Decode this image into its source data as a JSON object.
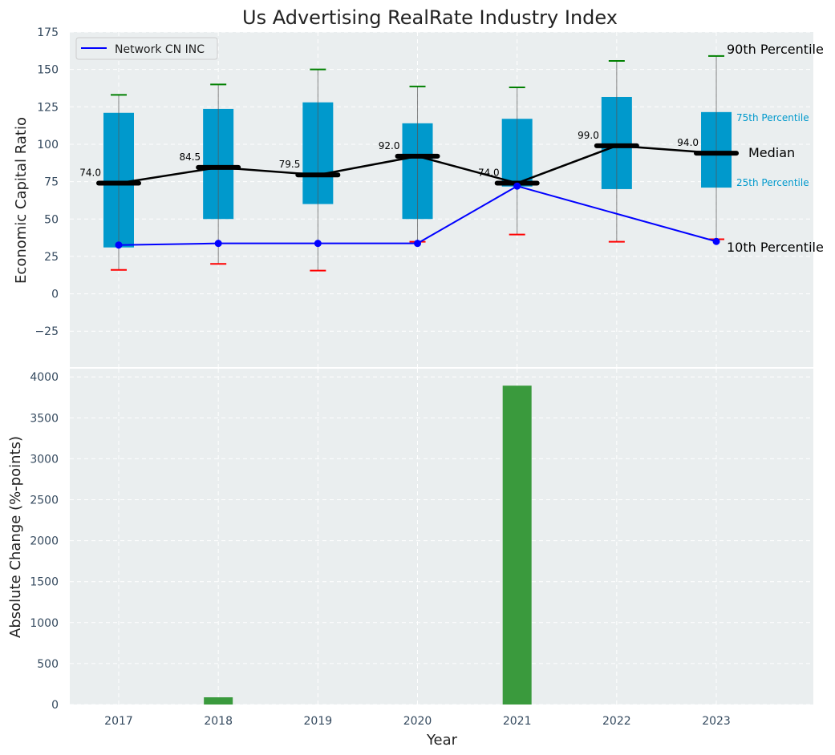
{
  "chart_data": [
    {
      "type": "box",
      "title": "Us Advertising RealRate Industry Index",
      "ylabel": "Economic Capital Ratio",
      "ylim": [
        -49,
        175
      ],
      "yticks": [
        -25,
        0,
        25,
        50,
        75,
        100,
        125,
        150,
        175
      ],
      "grid": true,
      "categories": [
        "2017",
        "2018",
        "2019",
        "2020",
        "2021",
        "2022",
        "2023"
      ],
      "p10": [
        16,
        20,
        15.5,
        34.8,
        39.6,
        34.8,
        36.5
      ],
      "q25": [
        31,
        50,
        60,
        50,
        71.7,
        70,
        71
      ],
      "median": [
        74.0,
        84.5,
        79.5,
        92.0,
        74.0,
        99.0,
        94.0
      ],
      "median_labels": [
        "74.0",
        "84.5",
        "79.5",
        "92.0",
        "74.0",
        "99.0",
        "94.0"
      ],
      "q75": [
        121,
        123.6,
        128,
        114,
        117,
        131.6,
        121.5
      ],
      "p90": [
        133,
        140,
        150,
        138.6,
        138,
        155.7,
        159
      ],
      "company": {
        "name": "Network CN INC",
        "values": [
          32.6,
          33.7,
          33.7,
          33.7,
          72,
          null,
          35
        ]
      },
      "legend": {
        "entries": [
          "Network CN INC"
        ],
        "placement": "top-left"
      },
      "annotations": {
        "p90": "90th Percentile",
        "q75": "75th Percentile",
        "median": "Median",
        "q25": "25th Percentile",
        "p10": "10th Percentile"
      },
      "colors": {
        "box": "#0099cc",
        "median": "#000000",
        "company": "#0000ff",
        "p90": "#008000",
        "p10": "#ff0000",
        "bg": "#eaeeef"
      }
    },
    {
      "type": "bar",
      "xlabel": "Year",
      "ylabel": "Absolute Change (%-points)",
      "ylim": [
        0,
        4100
      ],
      "yticks": [
        0,
        500,
        1000,
        1500,
        2000,
        2500,
        3000,
        3500,
        4000
      ],
      "categories": [
        "2017",
        "2018",
        "2019",
        "2020",
        "2021",
        "2022",
        "2023"
      ],
      "values": [
        0,
        88,
        0,
        0,
        3893,
        0,
        0
      ],
      "color": "#3a9a3d"
    }
  ]
}
